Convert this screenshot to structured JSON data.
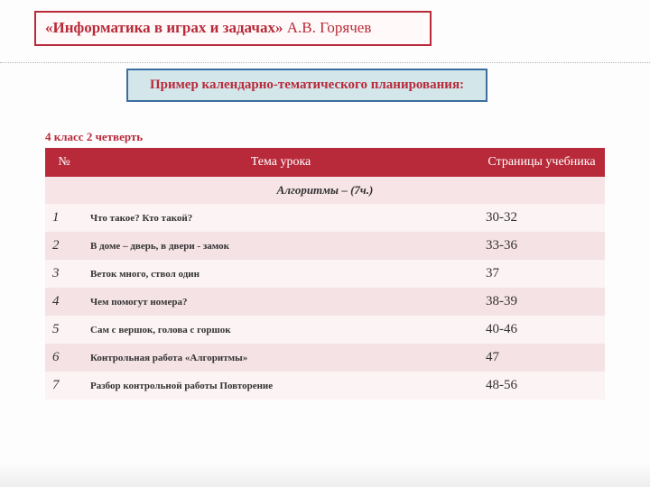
{
  "title": {
    "strong": "«Информатика в играх и задачах»",
    "rest": " А.В. Горячев"
  },
  "subtitle": "Пример календарно-тематического планирования:",
  "caption": "4 класс 2 четверть",
  "table": {
    "headers": {
      "num": "№",
      "topic": "Тема урока",
      "pages": "Страницы учебника"
    },
    "section": "Алгоритмы  – (7ч.)",
    "rows": [
      {
        "n": "1",
        "topic": "Что такое? Кто такой?",
        "pages": "30-32"
      },
      {
        "n": "2",
        "topic": "В доме – дверь, в двери - замок",
        "pages": "33-36"
      },
      {
        "n": "3",
        "topic": "Веток много, ствол один",
        "pages": "37"
      },
      {
        "n": "4",
        "topic": "Чем помогут номера?",
        "pages": "38-39"
      },
      {
        "n": "5",
        "topic": "Сам с вершок, голова с горшок",
        "pages": "40-46"
      },
      {
        "n": "6",
        "topic": "Контрольная работа «Алгоритмы»",
        "pages": "47"
      },
      {
        "n": "7",
        "topic": "Разбор контрольной работы  Повторение",
        "pages": " 48-56"
      }
    ]
  },
  "colors": {
    "brand": "#b82a3a",
    "subtitle_bg": "#d3e7eb",
    "subtitle_border": "#3b6e9e",
    "row_light": "#fbf3f4",
    "row_dark": "#f5e2e5",
    "section_bg": "#f7e4e7"
  }
}
